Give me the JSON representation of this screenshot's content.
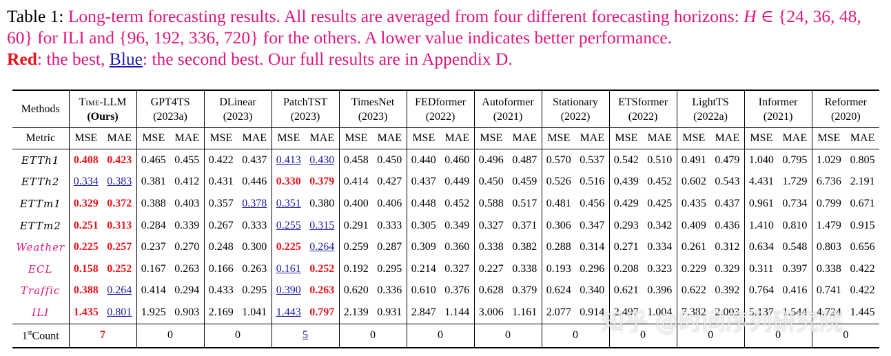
{
  "caption": {
    "label": "Table 1:",
    "line1_text": "Long-term forecasting results. All results are averaged from four different forecasting horizons:",
    "line1_math": "H ∈",
    "line2_math_ili": "{24, 36, 48, 60}",
    "line2_for_ili": "for ILI and",
    "line2_math_others": "{96, 192, 336, 720}",
    "line2_text": "for the others. A lower value indicates better performance.",
    "red_label": "Red",
    "red_text": ": the best,",
    "blue_label": "Blue",
    "blue_text": ": the second best. Our full results are in Appendix D."
  },
  "table": {
    "methods_label": "Methods",
    "metric_label": "Metric",
    "mse_label": "MSE",
    "mae_label": "MAE",
    "count_label": "Count",
    "count_superscript": "st",
    "count_prefix": "1",
    "ours_label": "(Ours)",
    "methods": [
      {
        "name": "Time-LLM",
        "year": "(Ours)"
      },
      {
        "name": "GPT4TS",
        "year": "(2023a)"
      },
      {
        "name": "DLinear",
        "year": "(2023)"
      },
      {
        "name": "PatchTST",
        "year": "(2023)"
      },
      {
        "name": "TimesNet",
        "year": "(2023)"
      },
      {
        "name": "FEDformer",
        "year": "(2022)"
      },
      {
        "name": "Autoformer",
        "year": "(2021)"
      },
      {
        "name": "Stationary",
        "year": "(2022)"
      },
      {
        "name": "ETSformer",
        "year": "(2022)"
      },
      {
        "name": "LightTS",
        "year": "(2022a)"
      },
      {
        "name": "Informer",
        "year": "(2021)"
      },
      {
        "name": "Reformer",
        "year": "(2020)"
      }
    ],
    "rows": [
      {
        "dataset": "ETTh1",
        "pink": false,
        "values": [
          "0.408",
          "0.423",
          "0.465",
          "0.455",
          "0.422",
          "0.437",
          "0.413",
          "0.430",
          "0.458",
          "0.450",
          "0.440",
          "0.460",
          "0.496",
          "0.487",
          "0.570",
          "0.537",
          "0.542",
          "0.510",
          "0.491",
          "0.479",
          "1.040",
          "0.795",
          "1.029",
          "0.805"
        ],
        "best": [
          0,
          1
        ],
        "second": [
          6,
          7
        ]
      },
      {
        "dataset": "ETTh2",
        "pink": false,
        "values": [
          "0.334",
          "0.383",
          "0.381",
          "0.412",
          "0.431",
          "0.446",
          "0.330",
          "0.379",
          "0.414",
          "0.427",
          "0.437",
          "0.449",
          "0.450",
          "0.459",
          "0.526",
          "0.516",
          "0.439",
          "0.452",
          "0.602",
          "0.543",
          "4.431",
          "1.729",
          "6.736",
          "2.191"
        ],
        "best": [
          6,
          7
        ],
        "second": [
          0,
          1
        ]
      },
      {
        "dataset": "ETTm1",
        "pink": false,
        "values": [
          "0.329",
          "0.372",
          "0.388",
          "0.403",
          "0.357",
          "0.378",
          "0.351",
          "0.380",
          "0.400",
          "0.406",
          "0.448",
          "0.452",
          "0.588",
          "0.517",
          "0.481",
          "0.456",
          "0.429",
          "0.425",
          "0.435",
          "0.437",
          "0.961",
          "0.734",
          "0.799",
          "0.671"
        ],
        "best": [
          0,
          1
        ],
        "second": [
          5,
          6
        ]
      },
      {
        "dataset": "ETTm2",
        "pink": false,
        "values": [
          "0.251",
          "0.313",
          "0.284",
          "0.339",
          "0.267",
          "0.333",
          "0.255",
          "0.315",
          "0.291",
          "0.333",
          "0.305",
          "0.349",
          "0.327",
          "0.371",
          "0.306",
          "0.347",
          "0.293",
          "0.342",
          "0.409",
          "0.436",
          "1.410",
          "0.810",
          "1.479",
          "0.915"
        ],
        "best": [
          0,
          1
        ],
        "second": [
          6,
          7
        ]
      },
      {
        "dataset": "Weather",
        "pink": true,
        "values": [
          "0.225",
          "0.257",
          "0.237",
          "0.270",
          "0.248",
          "0.300",
          "0.225",
          "0.264",
          "0.259",
          "0.287",
          "0.309",
          "0.360",
          "0.338",
          "0.382",
          "0.288",
          "0.314",
          "0.271",
          "0.334",
          "0.261",
          "0.312",
          "0.634",
          "0.548",
          "0.803",
          "0.656"
        ],
        "best": [
          0,
          1,
          6
        ],
        "second": [
          7
        ]
      },
      {
        "dataset": "ECL",
        "pink": true,
        "values": [
          "0.158",
          "0.252",
          "0.167",
          "0.263",
          "0.166",
          "0.263",
          "0.161",
          "0.252",
          "0.192",
          "0.295",
          "0.214",
          "0.327",
          "0.227",
          "0.338",
          "0.193",
          "0.296",
          "0.208",
          "0.323",
          "0.229",
          "0.329",
          "0.311",
          "0.397",
          "0.338",
          "0.422"
        ],
        "best": [
          0,
          1,
          7
        ],
        "second": [
          6
        ]
      },
      {
        "dataset": "Traffic",
        "pink": true,
        "values": [
          "0.388",
          "0.264",
          "0.414",
          "0.294",
          "0.433",
          "0.295",
          "0.390",
          "0.263",
          "0.620",
          "0.336",
          "0.610",
          "0.376",
          "0.628",
          "0.379",
          "0.624",
          "0.340",
          "0.621",
          "0.396",
          "0.622",
          "0.392",
          "0.764",
          "0.416",
          "0.741",
          "0.422"
        ],
        "best": [
          0,
          7
        ],
        "second": [
          1,
          6
        ]
      },
      {
        "dataset": "ILI",
        "pink": true,
        "values": [
          "1.435",
          "0.801",
          "1.925",
          "0.903",
          "2.169",
          "1.041",
          "1.443",
          "0.797",
          "2.139",
          "0.931",
          "2.847",
          "1.144",
          "3.006",
          "1.161",
          "2.077",
          "0.914",
          "2.497",
          "1.004",
          "7.382",
          "2.003",
          "5.137",
          "1.544",
          "4.724",
          "1.445"
        ],
        "best": [
          0,
          7
        ],
        "second": [
          1,
          6
        ]
      }
    ],
    "counts": [
      "7",
      "0",
      "0",
      "5",
      "0",
      "0",
      "0",
      "0",
      "0",
      "0",
      "0",
      "0"
    ],
    "count_styles": [
      "best",
      "",
      "",
      "second",
      "",
      "",
      "",
      "",
      "",
      "",
      "",
      ""
    ]
  },
  "watermark": "知乎 @时间序列研究院"
}
